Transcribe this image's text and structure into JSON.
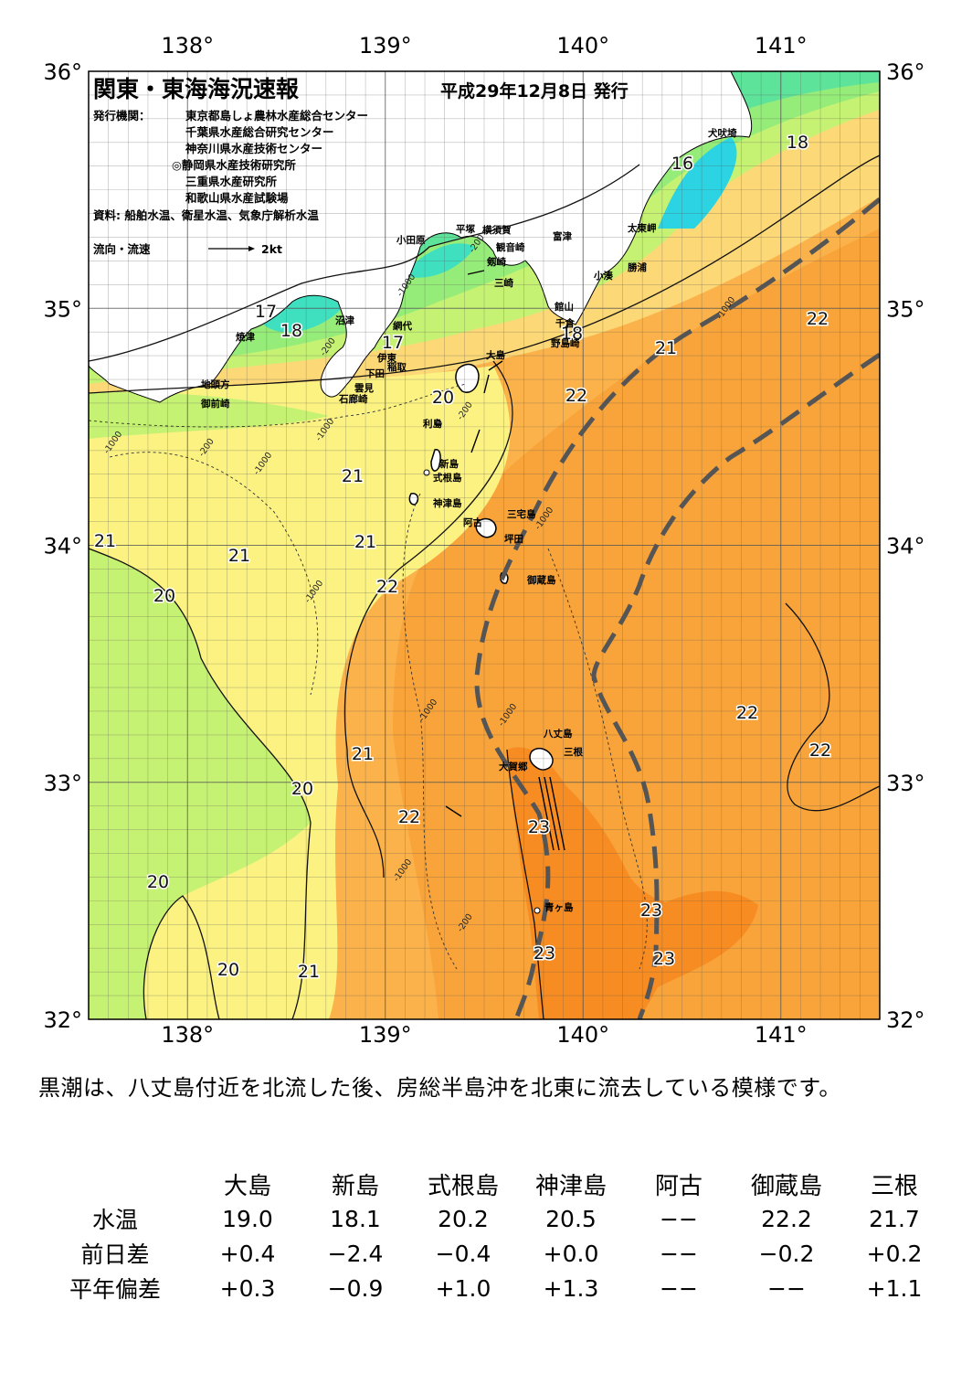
{
  "title": "関東・東海海況速報",
  "issue_date": "平成29年12月8日 発行",
  "issuers_label": "発行機関：",
  "issuers": [
    "東京都島しょ農林水産総合センター",
    "千葉県水産総合研究センター",
    "神奈川県水産技術センター",
    "◎静岡県水産技術研究所",
    "三重県水産研究所",
    "和歌山県水産試験場"
  ],
  "source": "資料: 船舶水温、衛星水温、気象庁解析水温",
  "current_legend": {
    "label": "流向・流速",
    "scale": "2kt"
  },
  "axes": {
    "lon_labels": [
      "138°",
      "139°",
      "140°",
      "141°"
    ],
    "lat_labels": [
      "36°",
      "35°",
      "34°",
      "33°",
      "32°"
    ]
  },
  "map": {
    "lon_range": [
      137.5,
      141.5
    ],
    "lat_range": [
      32,
      36
    ],
    "colors": {
      "cold16": "#2bd3e3",
      "t17": "#3ee0c0",
      "t18": "#5ee39a",
      "t19": "#96ec79",
      "t20": "#c6f273",
      "t21": "#fbf282",
      "t21b": "#fcd877",
      "t22": "#fbb24a",
      "t22b": "#f8a43a",
      "t23": "#f78c22",
      "land": "#ffffff",
      "kuroshio_axis": "#555555"
    },
    "isotherm_labels": [
      "16",
      "18",
      "17",
      "18",
      "17",
      "18",
      "21",
      "22",
      "20",
      "22",
      "21",
      "21",
      "21",
      "21",
      "22",
      "20",
      "22",
      "22",
      "21",
      "20",
      "22",
      "23",
      "20",
      "23",
      "23",
      "20",
      "21",
      "23"
    ],
    "depth_labels": [
      "-200",
      "-1000",
      "-1000",
      "-200",
      "-1000",
      "-1000",
      "-200",
      "-1000",
      "-200",
      "-1000",
      "-1000",
      "-1000",
      "-1000",
      "-200",
      "-1000"
    ],
    "place_names": [
      "犬吠埼",
      "太東岬",
      "勝浦",
      "小湊",
      "富津",
      "横須賀",
      "観音崎",
      "剱崎",
      "三崎",
      "平塚",
      "小田原",
      "館山",
      "千倉",
      "野島崎",
      "大島",
      "網代",
      "稲取",
      "伊東",
      "下田",
      "沼津",
      "焼津",
      "雲見",
      "石廊崎",
      "地頭方",
      "御前崎",
      "利島",
      "新島",
      "式根島",
      "神津島",
      "三宅島",
      "阿古",
      "坪田",
      "御蔵島",
      "八丈島",
      "三根",
      "大賀郷",
      "青ヶ島"
    ]
  },
  "summary": "黒潮は、八丈島付近を北流した後、房総半島沖を北東に流去している模様です。",
  "table": {
    "stations": [
      "大島",
      "新島",
      "式根島",
      "神津島",
      "阿古",
      "御蔵島",
      "三根"
    ],
    "rows": [
      {
        "label": "水温",
        "values": [
          "19.0",
          "18.1",
          "20.2",
          "20.5",
          "−−",
          "22.2",
          "21.7"
        ]
      },
      {
        "label": "前日差",
        "values": [
          "+0.4",
          "−2.4",
          "−0.4",
          "+0.0",
          "−−",
          "−0.2",
          "+0.2"
        ]
      },
      {
        "label": "平年偏差",
        "values": [
          "+0.3",
          "−0.9",
          "+1.0",
          "+1.3",
          "−−",
          "−−",
          "+1.1"
        ]
      }
    ]
  }
}
